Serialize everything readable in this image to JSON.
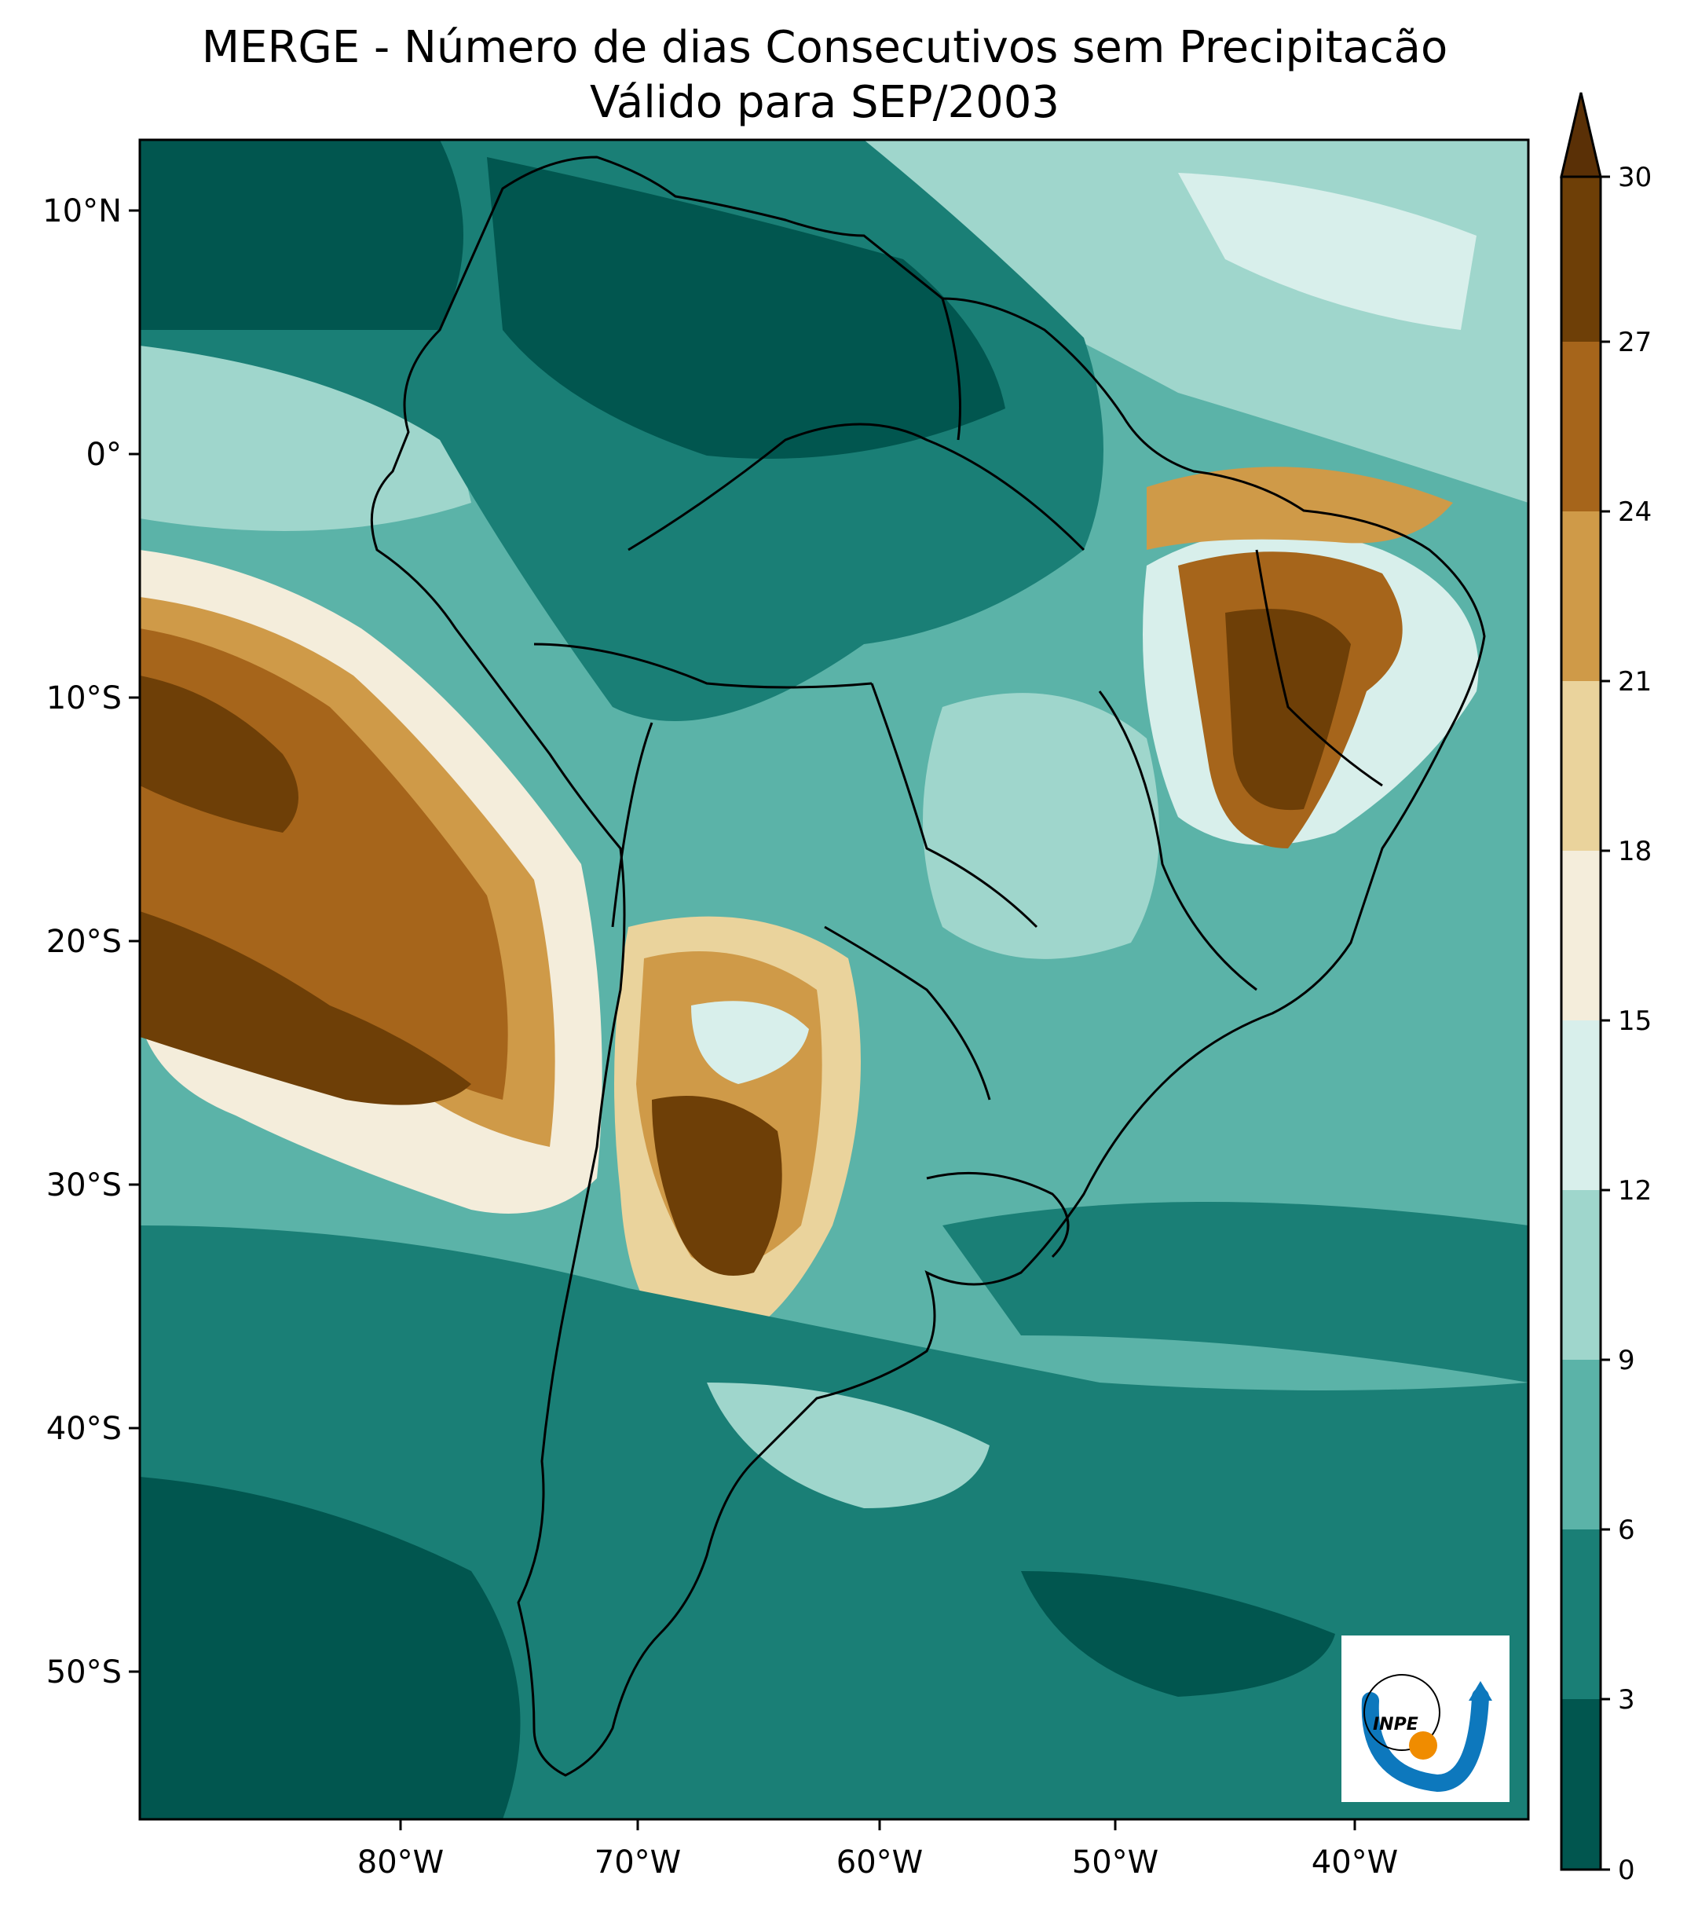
{
  "title": {
    "line1": "MERGE - Número de dias Consecutivos sem Precipitacão",
    "line2": "Válido para SEP/2003"
  },
  "axes": {
    "lon_ticks": [
      "80°W",
      "70°W",
      "60°W",
      "50°W",
      "40°W"
    ],
    "lat_ticks": [
      "10°N",
      "0°",
      "10°S",
      "20°S",
      "30°S",
      "40°S",
      "50°S"
    ]
  },
  "colorbar": {
    "levels": [
      "0",
      "3",
      "6",
      "9",
      "12",
      "15",
      "18",
      "21",
      "24",
      "27",
      "30"
    ],
    "colors": [
      "#01564f",
      "#1a7f76",
      "#5bb3a8",
      "#9fd6cc",
      "#d8efeb",
      "#f4eddb",
      "#ead39c",
      "#cf9a48",
      "#a6651b",
      "#6e3f07"
    ],
    "extend_color": "#5a3006"
  },
  "palette": {
    "ocean_deep": "#01564f",
    "ocean_mid": "#1a7f76",
    "ocean_light": "#5bb3a8",
    "pale": "#9fd6cc",
    "very_pale": "#d8efeb",
    "cream": "#f4eddb",
    "tan": "#ead39c",
    "ochre": "#cf9a48",
    "brown": "#a6651b",
    "dark_brown": "#6e3f07",
    "border": "#000000"
  },
  "logo": {
    "text": "INPE",
    "blue": "#0d78bd",
    "orange": "#f08c00"
  }
}
